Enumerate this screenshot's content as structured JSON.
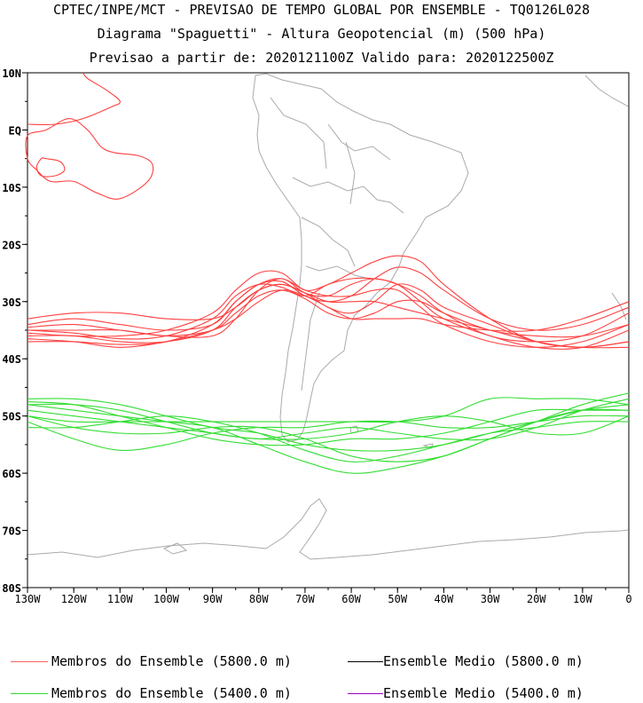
{
  "chart_data": {
    "type": "line",
    "title": "CPTEC/INPE/MCT - PREVISAO DE TEMPO GLOBAL POR ENSEMBLE - TQ0126L028",
    "subtitle": "Diagrama \"Spaguetti\" - Altura Geopotencial (m) (500 hPa)",
    "subtitle2": "Previsao a partir de: 2020121100Z  Valido para: 2020122500Z",
    "x_ticks": [
      "130W",
      "120W",
      "110W",
      "100W",
      "90W",
      "80W",
      "70W",
      "60W",
      "50W",
      "40W",
      "30W",
      "20W",
      "10W",
      "0"
    ],
    "y_ticks": [
      "10N",
      "EQ",
      "10S",
      "20S",
      "30S",
      "40S",
      "50S",
      "60S",
      "70S",
      "80S"
    ],
    "xlim": [
      -130,
      0
    ],
    "ylim": [
      -80,
      10
    ],
    "series": [
      {
        "name": "Membros do Ensemble (5800.0 m)",
        "color": "#ff4040"
      },
      {
        "name": "Membros do Ensemble (5400.0 m)",
        "color": "#33dd33"
      },
      {
        "name": "Ensemble Medio (5800.0 m)",
        "color": "#000000"
      },
      {
        "name": "Ensemble Medio (5400.0 m)",
        "color": "#a000c0"
      }
    ],
    "members_5800": [
      [
        [
          -130,
          -35
        ],
        [
          -120,
          -35.5
        ],
        [
          -110,
          -36.5
        ],
        [
          -100,
          -36
        ],
        [
          -90,
          -33
        ],
        [
          -85,
          -29
        ],
        [
          -80,
          -27
        ],
        [
          -75,
          -27.5
        ],
        [
          -70,
          -29
        ],
        [
          -65,
          -27
        ],
        [
          -60,
          -26
        ],
        [
          -55,
          -26
        ],
        [
          -50,
          -27
        ],
        [
          -45,
          -30
        ],
        [
          -40,
          -33
        ],
        [
          -30,
          -36
        ],
        [
          -20,
          -38
        ],
        [
          -10,
          -38
        ],
        [
          0,
          -35
        ]
      ],
      [
        [
          -130,
          -36
        ],
        [
          -120,
          -36
        ],
        [
          -110,
          -37
        ],
        [
          -100,
          -37
        ],
        [
          -90,
          -35
        ],
        [
          -85,
          -31
        ],
        [
          -80,
          -28
        ],
        [
          -75,
          -27
        ],
        [
          -70,
          -28.5
        ],
        [
          -65,
          -31
        ],
        [
          -60,
          -32
        ],
        [
          -55,
          -30
        ],
        [
          -50,
          -27
        ],
        [
          -45,
          -28
        ],
        [
          -40,
          -31
        ],
        [
          -30,
          -34
        ],
        [
          -20,
          -37
        ],
        [
          -10,
          -38
        ],
        [
          0,
          -37
        ]
      ],
      [
        [
          -130,
          -34
        ],
        [
          -120,
          -33
        ],
        [
          -110,
          -34
        ],
        [
          -100,
          -35
        ],
        [
          -90,
          -34
        ],
        [
          -85,
          -30
        ],
        [
          -80,
          -27
        ],
        [
          -75,
          -26.5
        ],
        [
          -70,
          -29
        ],
        [
          -65,
          -30
        ],
        [
          -60,
          -29
        ],
        [
          -55,
          -26
        ],
        [
          -50,
          -24
        ],
        [
          -45,
          -25
        ],
        [
          -40,
          -28
        ],
        [
          -30,
          -33
        ],
        [
          -20,
          -35
        ],
        [
          -10,
          -34
        ],
        [
          0,
          -31
        ]
      ],
      [
        [
          -130,
          -35
        ],
        [
          -120,
          -35
        ],
        [
          -110,
          -35
        ],
        [
          -100,
          -36
        ],
        [
          -90,
          -35
        ],
        [
          -85,
          -32
        ],
        [
          -80,
          -29
        ],
        [
          -75,
          -28
        ],
        [
          -70,
          -29.5
        ],
        [
          -65,
          -32
        ],
        [
          -60,
          -33
        ],
        [
          -55,
          -32
        ],
        [
          -50,
          -30
        ],
        [
          -45,
          -30
        ],
        [
          -40,
          -32
        ],
        [
          -30,
          -35
        ],
        [
          -20,
          -36
        ],
        [
          -10,
          -36
        ],
        [
          0,
          -34
        ]
      ],
      [
        [
          -130,
          -37
        ],
        [
          -120,
          -37
        ],
        [
          -110,
          -37.5
        ],
        [
          -100,
          -37
        ],
        [
          -90,
          -34
        ],
        [
          -85,
          -30
        ],
        [
          -80,
          -27
        ],
        [
          -75,
          -26
        ],
        [
          -70,
          -28
        ],
        [
          -65,
          -29
        ],
        [
          -60,
          -29
        ],
        [
          -55,
          -28
        ],
        [
          -50,
          -28
        ],
        [
          -45,
          -31
        ],
        [
          -40,
          -34
        ],
        [
          -30,
          -37
        ],
        [
          -20,
          -38
        ],
        [
          -10,
          -37
        ],
        [
          0,
          -34
        ]
      ],
      [
        [
          -130,
          -33
        ],
        [
          -120,
          -32
        ],
        [
          -110,
          -32
        ],
        [
          -100,
          -33
        ],
        [
          -90,
          -33
        ],
        [
          -85,
          -31
        ],
        [
          -80,
          -28
        ],
        [
          -75,
          -27
        ],
        [
          -70,
          -28.5
        ],
        [
          -65,
          -30
        ],
        [
          -60,
          -30
        ],
        [
          -55,
          -30
        ],
        [
          -50,
          -31
        ],
        [
          -45,
          -32
        ],
        [
          -40,
          -33
        ],
        [
          -30,
          -35
        ],
        [
          -20,
          -37
        ],
        [
          -10,
          -38
        ],
        [
          0,
          -37
        ]
      ],
      [
        [
          -130,
          -35.5
        ],
        [
          -120,
          -36
        ],
        [
          -110,
          -36
        ],
        [
          -100,
          -35
        ],
        [
          -90,
          -32
        ],
        [
          -85,
          -28
        ],
        [
          -80,
          -25
        ],
        [
          -75,
          -25
        ],
        [
          -70,
          -28
        ],
        [
          -65,
          -27
        ],
        [
          -60,
          -25
        ],
        [
          -55,
          -23
        ],
        [
          -50,
          -22
        ],
        [
          -45,
          -23
        ],
        [
          -40,
          -27
        ],
        [
          -30,
          -33
        ],
        [
          -20,
          -37
        ],
        [
          -10,
          -38
        ],
        [
          0,
          -38
        ]
      ],
      [
        [
          -130,
          -36.5
        ],
        [
          -120,
          -37
        ],
        [
          -110,
          -38
        ],
        [
          -100,
          -37
        ],
        [
          -90,
          -35
        ],
        [
          -85,
          -33
        ],
        [
          -80,
          -30
        ],
        [
          -75,
          -28
        ],
        [
          -70,
          -29
        ],
        [
          -65,
          -31
        ],
        [
          -60,
          -33
        ],
        [
          -55,
          -33
        ],
        [
          -50,
          -33
        ],
        [
          -45,
          -33
        ],
        [
          -40,
          -34
        ],
        [
          -30,
          -35
        ],
        [
          -20,
          -35
        ],
        [
          -10,
          -33
        ],
        [
          0,
          -30
        ]
      ],
      [
        [
          -130,
          -34.5
        ],
        [
          -120,
          -34
        ],
        [
          -110,
          -35
        ],
        [
          -100,
          -36
        ],
        [
          -90,
          -36
        ],
        [
          -85,
          -33
        ],
        [
          -80,
          -28
        ],
        [
          -75,
          -26
        ],
        [
          -70,
          -28.5
        ],
        [
          -65,
          -29
        ],
        [
          -60,
          -27
        ],
        [
          -55,
          -26
        ],
        [
          -50,
          -27
        ],
        [
          -45,
          -29
        ],
        [
          -40,
          -32
        ],
        [
          -30,
          -36
        ],
        [
          -20,
          -37
        ],
        [
          -10,
          -36
        ],
        [
          0,
          -32
        ]
      ]
    ],
    "members_5400": [
      [
        [
          -130,
          -48
        ],
        [
          -120,
          -48
        ],
        [
          -110,
          -49
        ],
        [
          -100,
          -51
        ],
        [
          -90,
          -53
        ],
        [
          -80,
          -54
        ],
        [
          -70,
          -54
        ],
        [
          -60,
          -53
        ],
        [
          -50,
          -51
        ],
        [
          -40,
          -50
        ],
        [
          -30,
          -51
        ],
        [
          -20,
          -53
        ],
        [
          -10,
          -53
        ],
        [
          0,
          -50
        ]
      ],
      [
        [
          -130,
          -51
        ],
        [
          -120,
          -54
        ],
        [
          -110,
          -56
        ],
        [
          -100,
          -55
        ],
        [
          -90,
          -53
        ],
        [
          -80,
          -52
        ],
        [
          -70,
          -52
        ],
        [
          -60,
          -51
        ],
        [
          -50,
          -51
        ],
        [
          -40,
          -52
        ],
        [
          -30,
          -52
        ],
        [
          -20,
          -51
        ],
        [
          -10,
          -50
        ],
        [
          0,
          -50
        ]
      ],
      [
        [
          -130,
          -47
        ],
        [
          -120,
          -47
        ],
        [
          -110,
          -48
        ],
        [
          -100,
          -50
        ],
        [
          -90,
          -52
        ],
        [
          -80,
          -53
        ],
        [
          -70,
          -55
        ],
        [
          -60,
          -56
        ],
        [
          -50,
          -56
        ],
        [
          -40,
          -55
        ],
        [
          -30,
          -53
        ],
        [
          -20,
          -51
        ],
        [
          -10,
          -49
        ],
        [
          0,
          -48
        ]
      ],
      [
        [
          -130,
          -50
        ],
        [
          -120,
          -52
        ],
        [
          -110,
          -53
        ],
        [
          -100,
          -53
        ],
        [
          -90,
          -52
        ],
        [
          -80,
          -52
        ],
        [
          -70,
          -54
        ],
        [
          -60,
          -57
        ],
        [
          -50,
          -58
        ],
        [
          -40,
          -57
        ],
        [
          -30,
          -54
        ],
        [
          -20,
          -51
        ],
        [
          -10,
          -49
        ],
        [
          0,
          -49
        ]
      ],
      [
        [
          -130,
          -49
        ],
        [
          -120,
          -50
        ],
        [
          -110,
          -51
        ],
        [
          -100,
          -52
        ],
        [
          -90,
          -53
        ],
        [
          -80,
          -54
        ],
        [
          -70,
          -53
        ],
        [
          -60,
          -52
        ],
        [
          -50,
          -53
        ],
        [
          -40,
          -54
        ],
        [
          -30,
          -54
        ],
        [
          -20,
          -52
        ],
        [
          -10,
          -49
        ],
        [
          0,
          -47
        ]
      ],
      [
        [
          -130,
          -48
        ],
        [
          -120,
          -49
        ],
        [
          -110,
          -50
        ],
        [
          -100,
          -51
        ],
        [
          -90,
          -52
        ],
        [
          -80,
          -55
        ],
        [
          -70,
          -58
        ],
        [
          -60,
          -60
        ],
        [
          -50,
          -59
        ],
        [
          -40,
          -57
        ],
        [
          -30,
          -54
        ],
        [
          -20,
          -51
        ],
        [
          -10,
          -48
        ],
        [
          0,
          -46
        ]
      ],
      [
        [
          -130,
          -52
        ],
        [
          -120,
          -52
        ],
        [
          -110,
          -51
        ],
        [
          -100,
          -50
        ],
        [
          -90,
          -51
        ],
        [
          -80,
          -53
        ],
        [
          -70,
          -56
        ],
        [
          -60,
          -58
        ],
        [
          -50,
          -57
        ],
        [
          -40,
          -55
        ],
        [
          -30,
          -53
        ],
        [
          -20,
          -52
        ],
        [
          -10,
          -51
        ],
        [
          0,
          -51
        ]
      ],
      [
        [
          -130,
          -47.5
        ],
        [
          -120,
          -48
        ],
        [
          -110,
          -50
        ],
        [
          -100,
          -52
        ],
        [
          -90,
          -54
        ],
        [
          -80,
          -55
        ],
        [
          -70,
          -55
        ],
        [
          -60,
          -54
        ],
        [
          -50,
          -54
        ],
        [
          -40,
          -53
        ],
        [
          -30,
          -51
        ],
        [
          -20,
          -49
        ],
        [
          -10,
          -49
        ],
        [
          0,
          -49
        ]
      ],
      [
        [
          -130,
          -50
        ],
        [
          -120,
          -51
        ],
        [
          -110,
          -51
        ],
        [
          -100,
          -51
        ],
        [
          -90,
          -51
        ],
        [
          -80,
          -51
        ],
        [
          -70,
          -51
        ],
        [
          -60,
          -51
        ],
        [
          -50,
          -51
        ],
        [
          -40,
          -50
        ],
        [
          -30,
          -47
        ],
        [
          -20,
          -47
        ],
        [
          -10,
          -47
        ],
        [
          0,
          -48
        ]
      ]
    ],
    "closed_contours_5800": [
      [
        [
          -126,
          -5
        ],
        [
          -123,
          -5.5
        ],
        [
          -122,
          -7
        ],
        [
          -124,
          -8
        ],
        [
          -127,
          -8
        ],
        [
          -128,
          -6.5
        ],
        [
          -127,
          -5
        ]
      ],
      [
        [
          -130,
          -1
        ],
        [
          -126,
          0
        ],
        [
          -121,
          2
        ],
        [
          -117,
          0
        ],
        [
          -114,
          -3
        ],
        [
          -111,
          -4
        ],
        [
          -106,
          -4.5
        ],
        [
          -103,
          -6
        ],
        [
          -104,
          -9
        ],
        [
          -110,
          -12
        ],
        [
          -115,
          -11
        ],
        [
          -120,
          -9
        ],
        [
          -125,
          -9
        ],
        [
          -128,
          -7
        ],
        [
          -130,
          -5
        ]
      ]
    ],
    "open_contours_5800": [
      [
        [
          -130,
          1
        ],
        [
          -124,
          1
        ],
        [
          -118,
          2
        ],
        [
          -112,
          4
        ],
        [
          -110,
          5
        ],
        [
          -113,
          7
        ],
        [
          -117,
          9
        ],
        [
          -118,
          10
        ]
      ]
    ]
  },
  "legend": {
    "item_5800_members": "Membros do Ensemble (5800.0 m)",
    "item_5400_members": "Membros do Ensemble (5400.0 m)",
    "item_5800_mean": "Ensemble Medio (5800.0 m)",
    "item_5400_mean": "Ensemble Medio (5400.0 m)"
  }
}
